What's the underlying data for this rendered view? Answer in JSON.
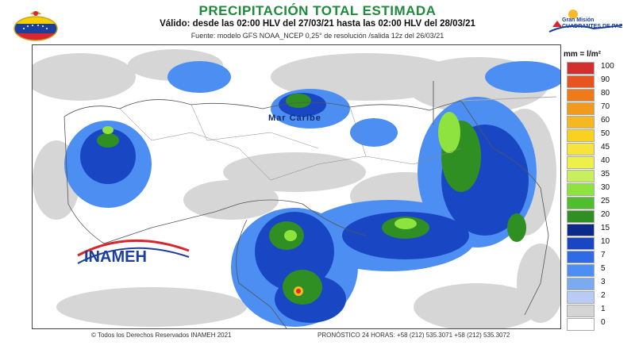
{
  "header": {
    "title": "PRECIPITACIÓN TOTAL ESTIMADA",
    "subtitle": "Válido: desde las 02:00 HLV del 27/03/21 hasta las 02:00 HLV del 28/03/21",
    "source": "Fuente: modelo GFS NOAA_NCEP 0,25° de resolución /salida 12z del 26/03/21"
  },
  "logos": {
    "gmv_line1": "Gran Misión",
    "gmv_line2": "CUADRANTES DE PAZ",
    "inameh_text": "INAMEH"
  },
  "map": {
    "sea_label": "Mar Caribe"
  },
  "legend": {
    "title": "mm = l/m²",
    "items": [
      {
        "label": "100",
        "color": "#d32f2f"
      },
      {
        "label": "90",
        "color": "#e8541f"
      },
      {
        "label": "80",
        "color": "#ef7a1a"
      },
      {
        "label": "70",
        "color": "#f29a1b"
      },
      {
        "label": "60",
        "color": "#f5b821"
      },
      {
        "label": "50",
        "color": "#f7d21f"
      },
      {
        "label": "45",
        "color": "#f6e43a"
      },
      {
        "label": "40",
        "color": "#eef04a"
      },
      {
        "label": "35",
        "color": "#c8f05c"
      },
      {
        "label": "30",
        "color": "#8fe33e"
      },
      {
        "label": "25",
        "color": "#4fbf2e"
      },
      {
        "label": "20",
        "color": "#2f8f23"
      },
      {
        "label": "15",
        "color": "#0b2a8a"
      },
      {
        "label": "10",
        "color": "#1947c4"
      },
      {
        "label": "7",
        "color": "#2f6be6"
      },
      {
        "label": "5",
        "color": "#4d8ef2"
      },
      {
        "label": "3",
        "color": "#7aaaf0"
      },
      {
        "label": "2",
        "color": "#b7cbf4"
      },
      {
        "label": "1",
        "color": "#d4d4d4"
      },
      {
        "label": "0",
        "color": "#ffffff"
      }
    ]
  },
  "footer": {
    "copyright": "© Todos los Derechos Reservados INAMEH 2021",
    "phones": "PRONÓSTICO 24 HORAS: +58 (212) 535.3071 +58 (212) 535.3072"
  }
}
